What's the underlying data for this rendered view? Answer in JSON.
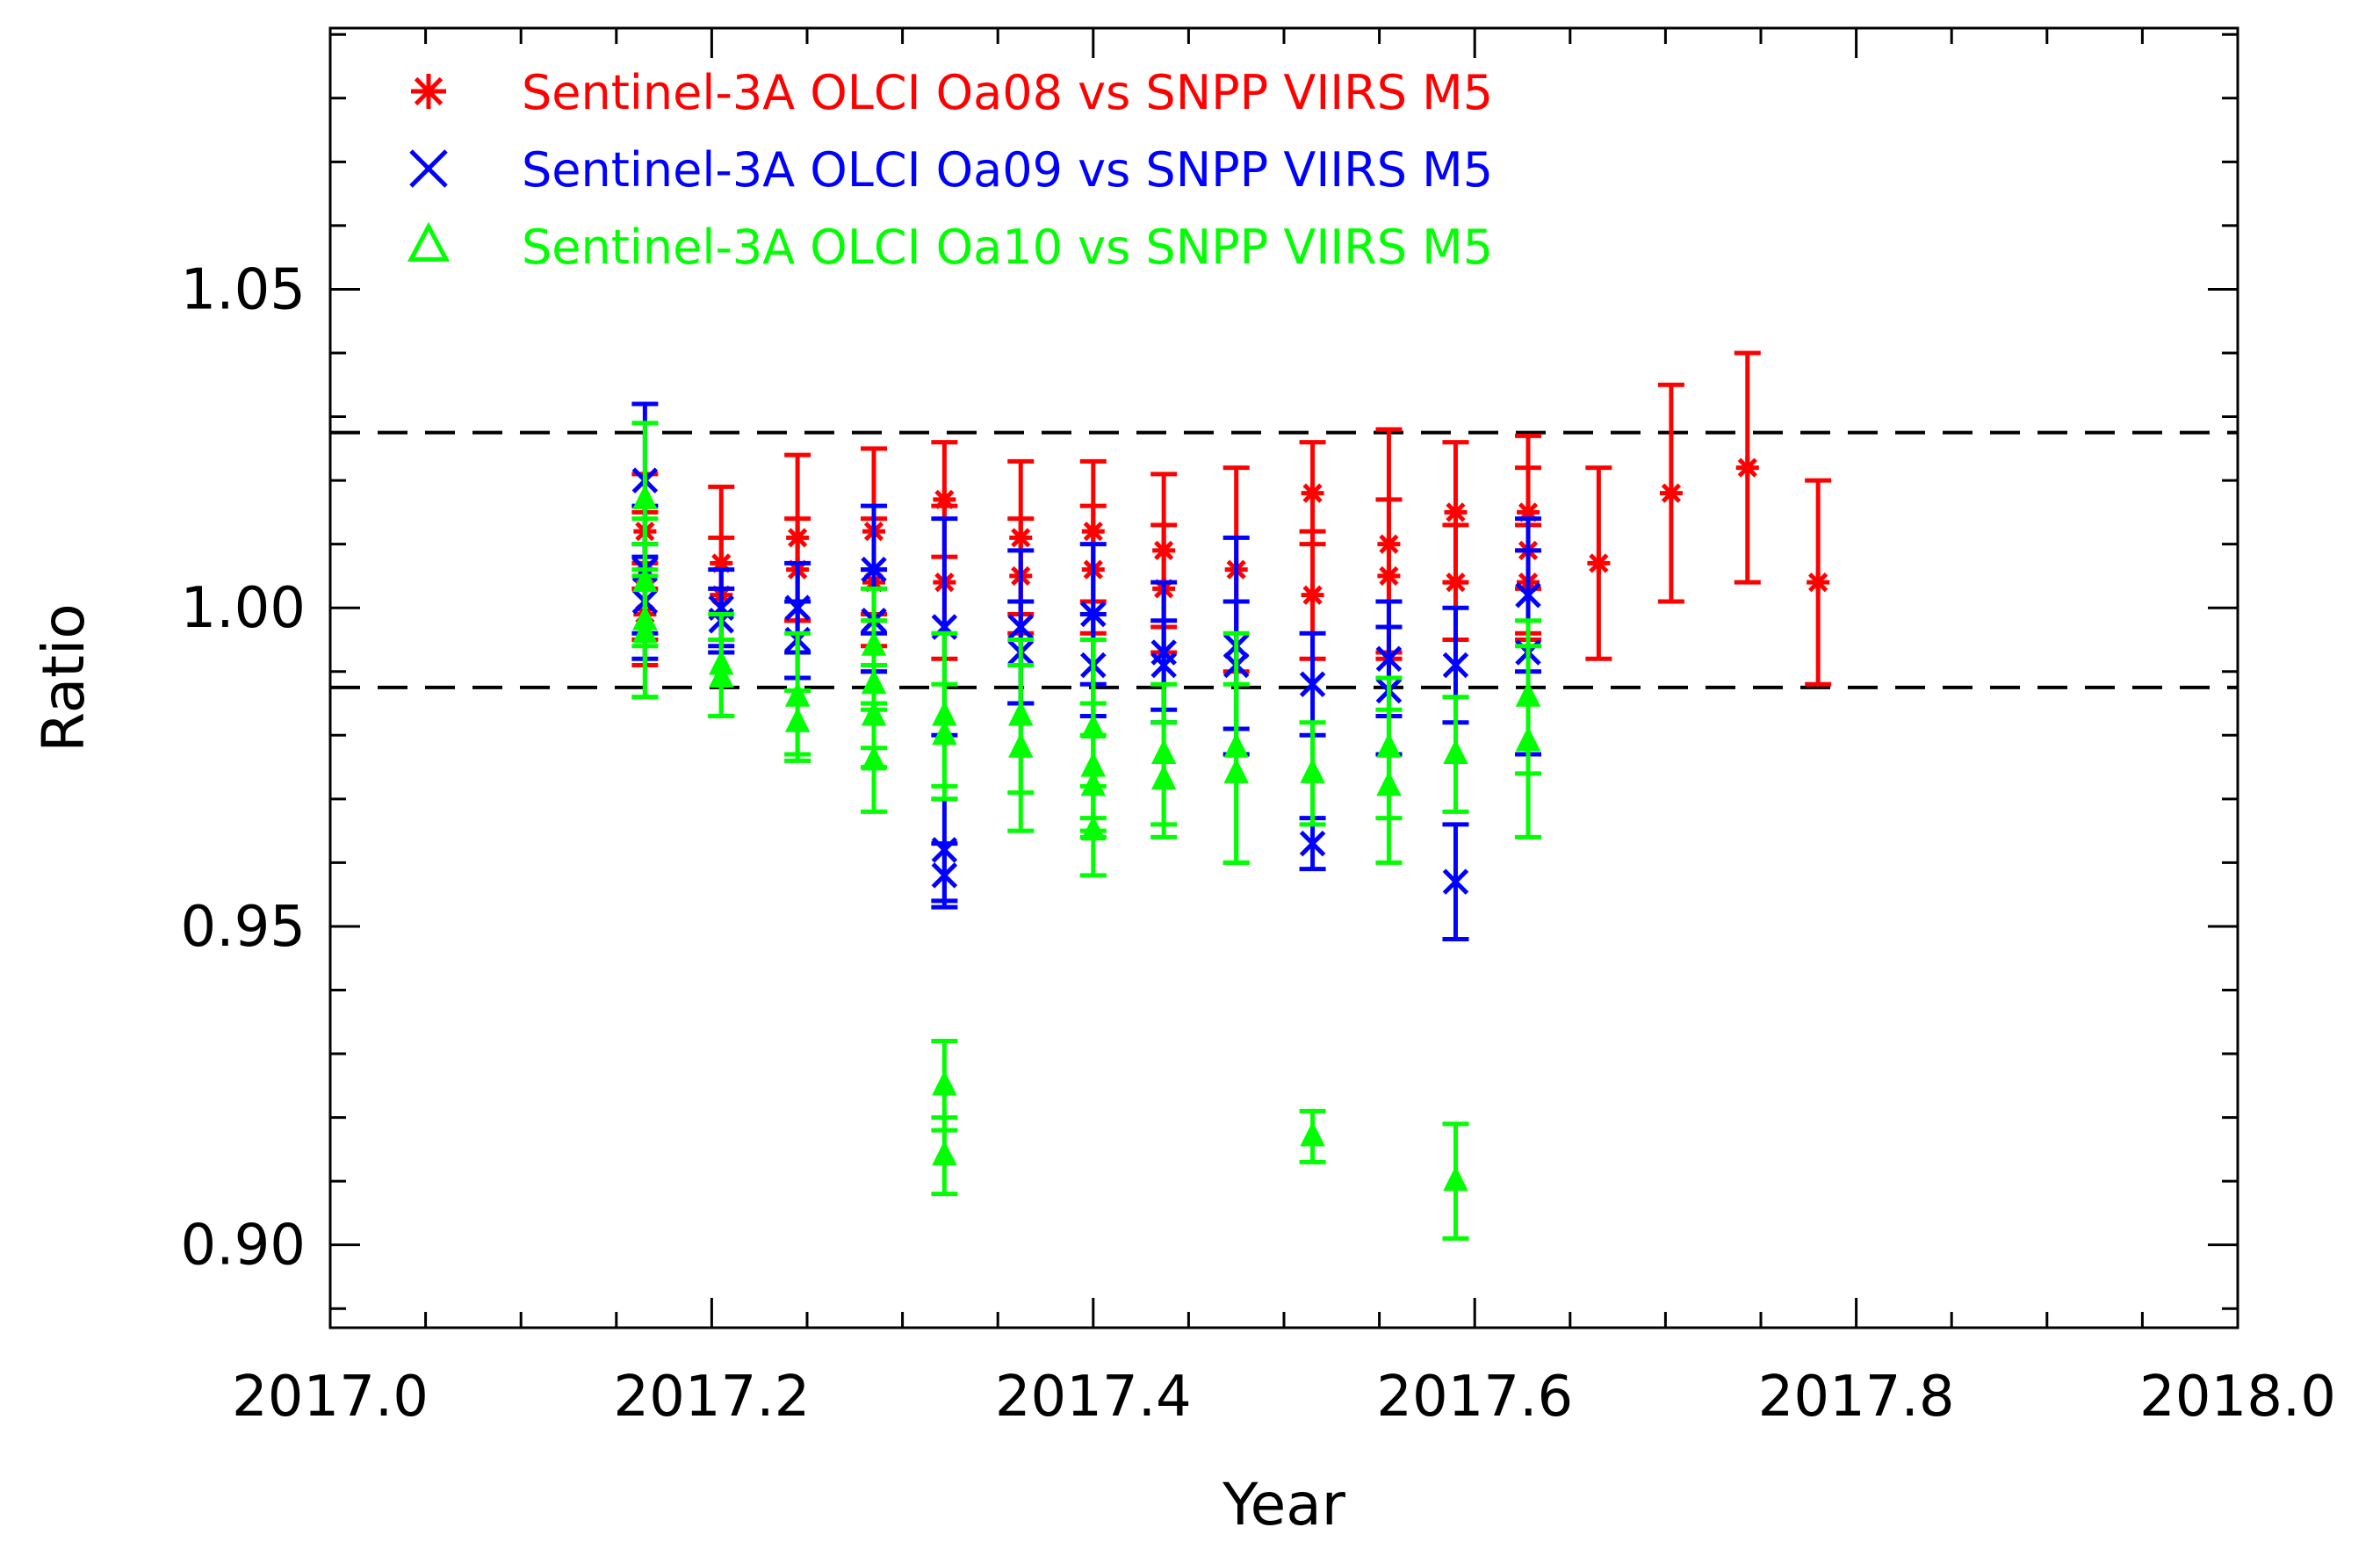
{
  "chart_data": {
    "type": "scatter",
    "title": "",
    "xlabel": "Year",
    "ylabel": "Ratio",
    "xlim": [
      2017.0,
      2018.0
    ],
    "ylim": [
      0.887,
      1.091
    ],
    "xticks": [
      2017.0,
      2017.2,
      2017.4,
      2017.6,
      2017.8,
      2018.0
    ],
    "xtick_labels": [
      "2017.0",
      "2017.2",
      "2017.4",
      "2017.6",
      "2017.8",
      "2018.0"
    ],
    "yticks": [
      0.9,
      0.95,
      1.0,
      1.05
    ],
    "ytick_labels": [
      "0.90",
      "0.95",
      "1.00",
      "1.05"
    ],
    "grid": false,
    "legend_position": "top-left",
    "reference_lines": [
      {
        "y": 1.0275,
        "style": "dashed",
        "color": "#000000"
      },
      {
        "y": 0.9875,
        "style": "dashed",
        "color": "#000000"
      }
    ],
    "series": [
      {
        "name": "Sentinel-3A OLCI Oa08 vs SNPP VIIRS M5",
        "color": "#ff0000",
        "marker": "asterisk",
        "points": [
          {
            "x": 2017.165,
            "y": 1.005,
            "err": 0.01
          },
          {
            "x": 2017.165,
            "y": 1.012,
            "err": 0.009
          },
          {
            "x": 2017.165,
            "y": 0.999,
            "err": 0.008
          },
          {
            "x": 2017.205,
            "y": 1.007,
            "err": 0.012
          },
          {
            "x": 2017.205,
            "y": 1.002,
            "err": 0.009
          },
          {
            "x": 2017.245,
            "y": 1.011,
            "err": 0.013
          },
          {
            "x": 2017.245,
            "y": 1.006,
            "err": 0.008
          },
          {
            "x": 2017.285,
            "y": 1.012,
            "err": 0.013
          },
          {
            "x": 2017.285,
            "y": 1.004,
            "err": 0.01
          },
          {
            "x": 2017.285,
            "y": 0.998,
            "err": 0.008
          },
          {
            "x": 2017.322,
            "y": 1.017,
            "err": 0.009
          },
          {
            "x": 2017.322,
            "y": 1.004,
            "err": 0.012
          },
          {
            "x": 2017.362,
            "y": 1.011,
            "err": 0.012
          },
          {
            "x": 2017.362,
            "y": 1.005,
            "err": 0.009
          },
          {
            "x": 2017.4,
            "y": 1.012,
            "err": 0.011
          },
          {
            "x": 2017.4,
            "y": 1.006,
            "err": 0.01
          },
          {
            "x": 2017.437,
            "y": 1.009,
            "err": 0.012
          },
          {
            "x": 2017.437,
            "y": 1.003,
            "err": 0.01
          },
          {
            "x": 2017.475,
            "y": 1.006,
            "err": 0.016
          },
          {
            "x": 2017.515,
            "y": 1.018,
            "err": 0.008
          },
          {
            "x": 2017.515,
            "y": 1.002,
            "err": 0.01
          },
          {
            "x": 2017.555,
            "y": 1.01,
            "err": 0.018
          },
          {
            "x": 2017.555,
            "y": 1.005,
            "err": 0.012
          },
          {
            "x": 2017.59,
            "y": 1.015,
            "err": 0.011
          },
          {
            "x": 2017.59,
            "y": 1.004,
            "err": 0.009
          },
          {
            "x": 2017.628,
            "y": 1.015,
            "err": 0.012
          },
          {
            "x": 2017.628,
            "y": 1.009,
            "err": 0.013
          },
          {
            "x": 2017.628,
            "y": 1.004,
            "err": 0.009
          },
          {
            "x": 2017.665,
            "y": 1.007,
            "err": 0.015
          },
          {
            "x": 2017.703,
            "y": 1.018,
            "err": 0.017
          },
          {
            "x": 2017.743,
            "y": 1.022,
            "err": 0.018
          },
          {
            "x": 2017.78,
            "y": 1.004,
            "err": 0.016
          }
        ]
      },
      {
        "name": "Sentinel-3A OLCI Oa09 vs SNPP VIIRS M5",
        "color": "#0000ff",
        "marker": "x",
        "points": [
          {
            "x": 2017.165,
            "y": 1.02,
            "err": 0.012
          },
          {
            "x": 2017.165,
            "y": 1.006,
            "err": 0.01
          },
          {
            "x": 2017.165,
            "y": 1.001,
            "err": 0.009
          },
          {
            "x": 2017.205,
            "y": 1.0,
            "err": 0.006
          },
          {
            "x": 2017.205,
            "y": 0.998,
            "err": 0.005
          },
          {
            "x": 2017.245,
            "y": 1.0,
            "err": 0.007
          },
          {
            "x": 2017.245,
            "y": 0.995,
            "err": 0.006
          },
          {
            "x": 2017.285,
            "y": 1.006,
            "err": 0.01
          },
          {
            "x": 2017.285,
            "y": 0.998,
            "err": 0.008
          },
          {
            "x": 2017.322,
            "y": 0.997,
            "err": 0.017
          },
          {
            "x": 2017.322,
            "y": 0.962,
            "err": 0.008
          },
          {
            "x": 2017.322,
            "y": 0.958,
            "err": 0.005
          },
          {
            "x": 2017.362,
            "y": 0.997,
            "err": 0.012
          },
          {
            "x": 2017.362,
            "y": 0.993,
            "err": 0.008
          },
          {
            "x": 2017.4,
            "y": 0.999,
            "err": 0.011
          },
          {
            "x": 2017.4,
            "y": 0.991,
            "err": 0.008
          },
          {
            "x": 2017.437,
            "y": 0.993,
            "err": 0.011
          },
          {
            "x": 2017.437,
            "y": 0.991,
            "err": 0.007
          },
          {
            "x": 2017.475,
            "y": 0.994,
            "err": 0.017
          },
          {
            "x": 2017.475,
            "y": 0.991,
            "err": 0.01
          },
          {
            "x": 2017.515,
            "y": 0.988,
            "err": 0.008
          },
          {
            "x": 2017.515,
            "y": 0.963,
            "err": 0.004
          },
          {
            "x": 2017.555,
            "y": 0.992,
            "err": 0.009
          },
          {
            "x": 2017.555,
            "y": 0.987,
            "err": 0.01
          },
          {
            "x": 2017.59,
            "y": 0.991,
            "err": 0.009
          },
          {
            "x": 2017.59,
            "y": 0.957,
            "err": 0.009
          },
          {
            "x": 2017.628,
            "y": 1.002,
            "err": 0.012
          },
          {
            "x": 2017.628,
            "y": 0.993,
            "err": 0.016
          }
        ]
      },
      {
        "name": "Sentinel-3A OLCI Oa10 vs SNPP VIIRS M5",
        "color": "#00ff00",
        "marker": "triangle",
        "points": [
          {
            "x": 2017.165,
            "y": 1.017,
            "err": 0.012
          },
          {
            "x": 2017.165,
            "y": 1.004,
            "err": 0.01
          },
          {
            "x": 2017.165,
            "y": 0.998,
            "err": 0.012
          },
          {
            "x": 2017.165,
            "y": 0.996,
            "err": 0.01
          },
          {
            "x": 2017.205,
            "y": 0.991,
            "err": 0.008
          },
          {
            "x": 2017.205,
            "y": 0.989,
            "err": 0.006
          },
          {
            "x": 2017.245,
            "y": 0.986,
            "err": 0.01
          },
          {
            "x": 2017.245,
            "y": 0.982,
            "err": 0.005
          },
          {
            "x": 2017.285,
            "y": 0.994,
            "err": 0.009
          },
          {
            "x": 2017.285,
            "y": 0.988,
            "err": 0.01
          },
          {
            "x": 2017.285,
            "y": 0.983,
            "err": 0.008
          },
          {
            "x": 2017.285,
            "y": 0.976,
            "err": 0.008
          },
          {
            "x": 2017.322,
            "y": 0.983,
            "err": 0.013
          },
          {
            "x": 2017.322,
            "y": 0.98,
            "err": 0.008
          },
          {
            "x": 2017.322,
            "y": 0.925,
            "err": 0.007
          },
          {
            "x": 2017.322,
            "y": 0.914,
            "err": 0.006
          },
          {
            "x": 2017.362,
            "y": 0.983,
            "err": 0.012
          },
          {
            "x": 2017.362,
            "y": 0.978,
            "err": 0.013
          },
          {
            "x": 2017.4,
            "y": 0.981,
            "err": 0.014
          },
          {
            "x": 2017.4,
            "y": 0.975,
            "err": 0.01
          },
          {
            "x": 2017.4,
            "y": 0.972,
            "err": 0.008
          },
          {
            "x": 2017.4,
            "y": 0.965,
            "err": 0.007
          },
          {
            "x": 2017.437,
            "y": 0.977,
            "err": 0.011
          },
          {
            "x": 2017.437,
            "y": 0.973,
            "err": 0.009
          },
          {
            "x": 2017.475,
            "y": 0.978,
            "err": 0.018
          },
          {
            "x": 2017.475,
            "y": 0.974,
            "err": 0.014
          },
          {
            "x": 2017.515,
            "y": 0.974,
            "err": 0.008
          },
          {
            "x": 2017.515,
            "y": 0.917,
            "err": 0.004
          },
          {
            "x": 2017.555,
            "y": 0.978,
            "err": 0.011
          },
          {
            "x": 2017.555,
            "y": 0.972,
            "err": 0.012
          },
          {
            "x": 2017.59,
            "y": 0.977,
            "err": 0.009
          },
          {
            "x": 2017.59,
            "y": 0.91,
            "err": 0.009
          },
          {
            "x": 2017.628,
            "y": 0.986,
            "err": 0.012
          },
          {
            "x": 2017.628,
            "y": 0.979,
            "err": 0.015
          }
        ]
      }
    ]
  }
}
